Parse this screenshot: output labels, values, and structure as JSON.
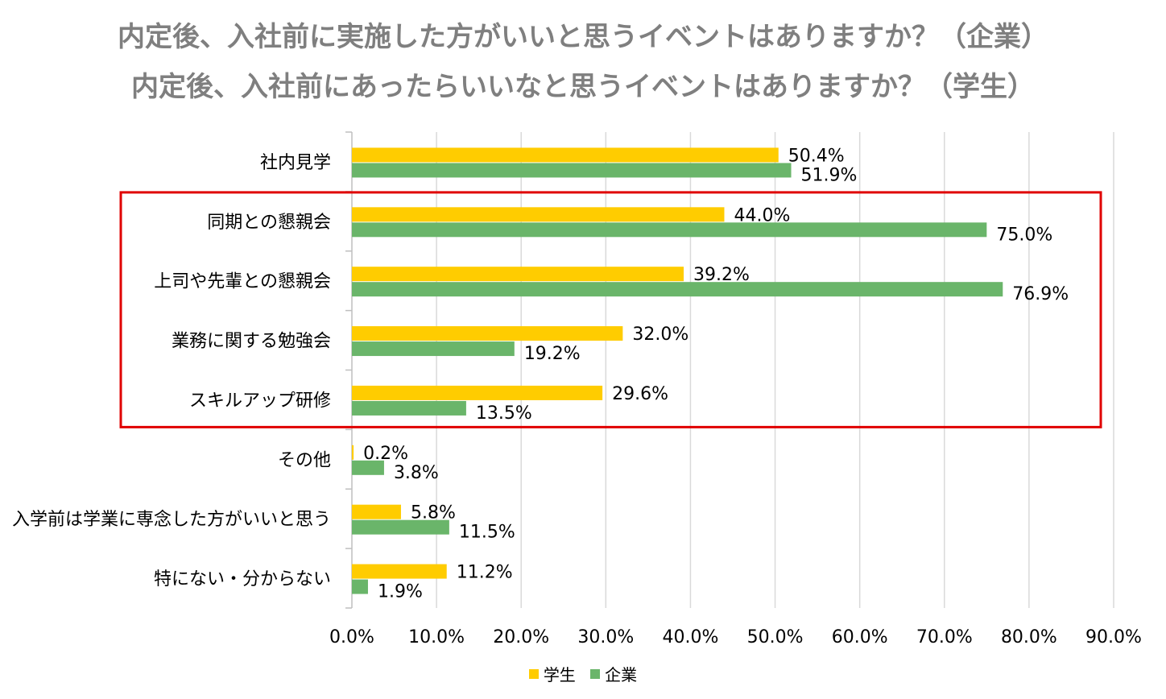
{
  "titles": {
    "line1": "内定後、入社前に実施した方がいいと思うイベントはありますか？（企業）",
    "line2": "内定後、入社前にあったらいいなと思うイベントはありますか？（学生）"
  },
  "colors": {
    "student": "#ffcc00",
    "company": "#6ab56a",
    "grid": "#d9d9d9",
    "highlight_box": "#e00000"
  },
  "chart_data": {
    "type": "bar",
    "orientation": "horizontal",
    "title": "内定後、入社前に実施した方がいいと思うイベントはありますか？（企業） / 内定後、入社前にあったらいいなと思うイベントはありますか？（学生）",
    "categories": [
      "社内見学",
      "同期との懇親会",
      "上司や先輩との懇親会",
      "業務に関する勉強会",
      "スキルアップ研修",
      "その他",
      "入学前は学業に専念した方がいいと思う",
      "特にない・分からない"
    ],
    "series": [
      {
        "name": "学生",
        "values": [
          50.4,
          44.0,
          39.2,
          32.0,
          29.6,
          0.2,
          5.8,
          11.2
        ],
        "labels": [
          "50.4%",
          "44.0%",
          "39.2%",
          "32.0%",
          "29.6%",
          "0.2%",
          "5.8%",
          "11.2%"
        ]
      },
      {
        "name": "企業",
        "values": [
          51.9,
          75.0,
          76.9,
          19.2,
          13.5,
          3.8,
          11.5,
          1.9
        ],
        "labels": [
          "51.9%",
          "75.0%",
          "76.9%",
          "19.2%",
          "13.5%",
          "3.8%",
          "11.5%",
          "1.9%"
        ]
      }
    ],
    "xlim": [
      0,
      90
    ],
    "xticks": [
      0,
      10,
      20,
      30,
      40,
      50,
      60,
      70,
      80,
      90
    ],
    "xtick_labels": [
      "0.0%",
      "10.0%",
      "20.0%",
      "30.0%",
      "40.0%",
      "50.0%",
      "60.0%",
      "70.0%",
      "80.0%",
      "90.0%"
    ],
    "grid": true,
    "legend": "bottom-center",
    "highlight_categories": [
      "同期との懇親会",
      "上司や先輩との懇親会",
      "業務に関する勉強会",
      "スキルアップ研修"
    ]
  },
  "legend": {
    "student_label": "学生",
    "company_label": "企業"
  }
}
